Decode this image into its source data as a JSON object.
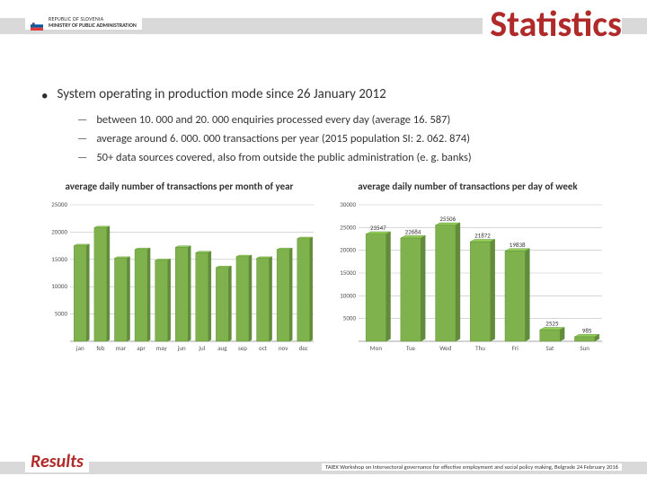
{
  "header": {
    "org_line1": "REPUBLIC OF SLOVENIA",
    "org_line2": "MINISTRY OF PUBLIC ADMINISTRATION",
    "title": "Statistics"
  },
  "bullets": {
    "main": "System operating in production mode since 26 January 2012",
    "subs": [
      "between 10. 000 and 20. 000 enquiries processed every day (average 16. 587)",
      "average around 6. 000. 000 transactions per year (2015 population SI: 2. 062. 874)",
      "50+ data sources covered, also from outside the public administration (e. g. banks)"
    ]
  },
  "chart_left": {
    "type": "bar",
    "title": "average daily number of transactions per month of year",
    "categories": [
      "jan",
      "feb",
      "mar",
      "apr",
      "may",
      "jun",
      "jul",
      "aug",
      "sep",
      "oct",
      "nov",
      "dec"
    ],
    "values": [
      17500,
      20800,
      15200,
      16800,
      14800,
      17200,
      16200,
      13500,
      15500,
      15200,
      16800,
      18800
    ],
    "bar_color": "#7fb24d",
    "bar_stroke": "#5a8a33",
    "ylim": [
      0,
      25000
    ],
    "yticks": [
      5000,
      10000,
      15000,
      20000,
      25000
    ],
    "grid_color": "#bfbfbf",
    "background": "#ffffff",
    "axis_fontsize": 7,
    "bar_width": 0.62
  },
  "chart_right": {
    "type": "bar",
    "title": "average daily number of transactions per day of week",
    "categories": [
      "Mon",
      "Tue",
      "Wed",
      "Thu",
      "Fri",
      "Sat",
      "Sun"
    ],
    "values": [
      23547,
      22684,
      25506,
      21872,
      19838,
      2525,
      985
    ],
    "bar_color": "#7fb24d",
    "bar_stroke": "#5a8a33",
    "ylim": [
      0,
      30000
    ],
    "yticks": [
      5000,
      10000,
      15000,
      20000,
      25000,
      30000
    ],
    "grid_color": "#bfbfbf",
    "background": "#ffffff",
    "axis_fontsize": 7,
    "label_fontsize": 7,
    "bar_width": 0.58,
    "show_value_labels": true
  },
  "footer": {
    "results": "Results",
    "footnote": "TAIEX Workshop on Intersectoral governance for effective employment and social policy making, Belgrade 24 February 2016"
  },
  "flag_colors": {
    "top": "#ffffff",
    "mid": "#0056a3",
    "bot": "#e03a3e",
    "shield": "#0056a3"
  }
}
